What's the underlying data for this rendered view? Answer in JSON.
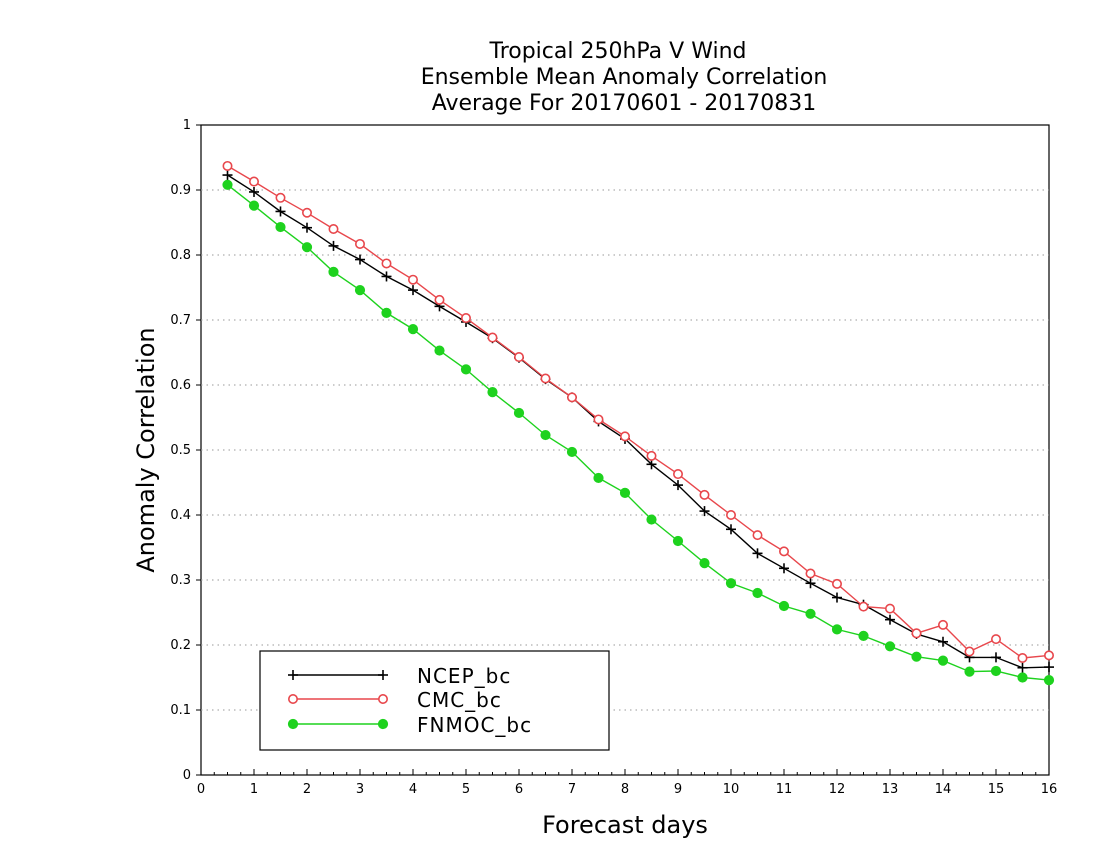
{
  "chart_data": {
    "type": "line",
    "title": [
      "Tropical 250hPa V Wind",
      "Ensemble Mean Anomaly Correlation",
      "Average For 20170601 - 20170831"
    ],
    "xlabel": "Forecast days",
    "ylabel": "Anomaly Correlation",
    "xlim": [
      0,
      16
    ],
    "ylim": [
      0,
      1
    ],
    "x_ticks": [
      "0",
      "1",
      "2",
      "3",
      "4",
      "5",
      "6",
      "7",
      "8",
      "9",
      "10",
      "11",
      "12",
      "13",
      "14",
      "15",
      "16"
    ],
    "y_ticks": [
      "0",
      "0.1",
      "0.2",
      "0.3",
      "0.4",
      "0.5",
      "0.6",
      "0.7",
      "0.8",
      "0.9",
      "1"
    ],
    "grid": "horizontal dotted",
    "legend_position": "bottom-left",
    "x": [
      0.5,
      1,
      1.5,
      2,
      2.5,
      3,
      3.5,
      4,
      4.5,
      5,
      5.5,
      6,
      6.5,
      7,
      7.5,
      8,
      8.5,
      9,
      9.5,
      10,
      10.5,
      11,
      11.5,
      12,
      12.5,
      13,
      13.5,
      14,
      14.5,
      15,
      15.5,
      16
    ],
    "series": [
      {
        "name": "NCEP_bc",
        "color": "#000000",
        "marker": "plus",
        "values": [
          0.923,
          0.897,
          0.867,
          0.842,
          0.814,
          0.793,
          0.767,
          0.746,
          0.721,
          0.697,
          0.672,
          0.642,
          0.609,
          0.581,
          0.544,
          0.517,
          0.478,
          0.446,
          0.406,
          0.378,
          0.341,
          0.318,
          0.295,
          0.273,
          0.262,
          0.239,
          0.217,
          0.205,
          0.181,
          0.181,
          0.165,
          0.166
        ]
      },
      {
        "name": "CMC_bc",
        "color": "#e8474c",
        "marker": "open-circle",
        "values": [
          0.937,
          0.913,
          0.888,
          0.865,
          0.84,
          0.817,
          0.787,
          0.762,
          0.731,
          0.703,
          0.673,
          0.643,
          0.61,
          0.581,
          0.547,
          0.521,
          0.491,
          0.463,
          0.431,
          0.4,
          0.369,
          0.344,
          0.31,
          0.294,
          0.259,
          0.256,
          0.218,
          0.231,
          0.19,
          0.209,
          0.18,
          0.184
        ]
      },
      {
        "name": "FNMOC_bc",
        "color": "#1ed21e",
        "marker": "filled-circle",
        "values": [
          0.908,
          0.876,
          0.843,
          0.812,
          0.774,
          0.746,
          0.711,
          0.686,
          0.653,
          0.624,
          0.589,
          0.557,
          0.523,
          0.497,
          0.457,
          0.434,
          0.393,
          0.36,
          0.326,
          0.295,
          0.28,
          0.26,
          0.248,
          0.224,
          0.214,
          0.198,
          0.182,
          0.176,
          0.159,
          0.16,
          0.15,
          0.146
        ]
      }
    ]
  }
}
